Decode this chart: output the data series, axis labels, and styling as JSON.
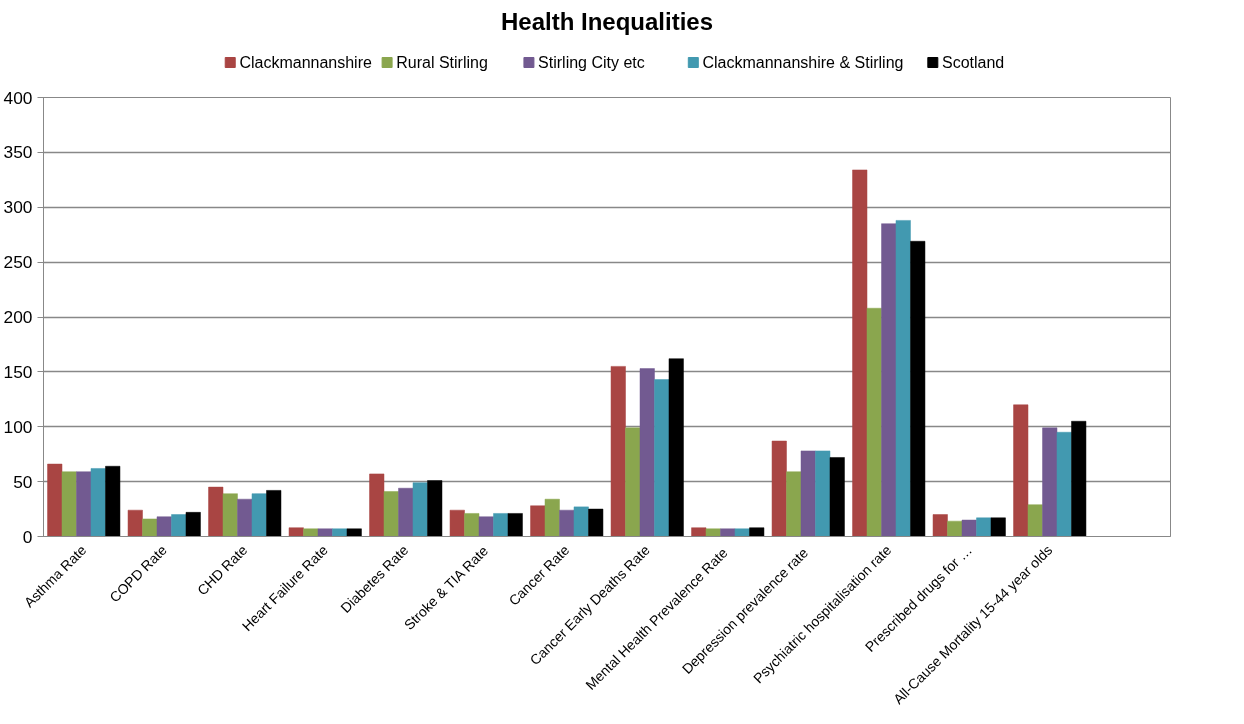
{
  "chart_data": {
    "type": "bar",
    "title": "Health Inequalities",
    "categories": [
      "Asthma Rate",
      "COPD Rate",
      "CHD Rate",
      "Heart Failure Rate",
      "Diabetes Rate",
      "Stroke & TIA Rate",
      "Cancer Rate",
      "Cancer Early Deaths Rate",
      "Mental Health  Prevalence Rate",
      "Depression  prevalence rate",
      "Psychiatric hospitalisation rate",
      "Prescribed drugs for …",
      "All-Cause Mortality 15-44 year olds",
      null
    ],
    "series": [
      {
        "name": "Clackmannanshire",
        "color": "#a94543",
        "values": [
          66,
          24,
          45,
          8,
          57,
          24,
          28,
          155,
          8,
          87,
          334,
          20,
          120,
          null
        ]
      },
      {
        "name": "Rural Stirling",
        "color": "#8aa64e",
        "values": [
          59,
          16,
          39,
          7,
          41,
          21,
          34,
          99,
          7,
          59,
          208,
          14,
          29,
          null
        ]
      },
      {
        "name": "Stirling City etc",
        "color": "#725a91",
        "values": [
          59,
          18,
          34,
          7,
          44,
          18,
          24,
          153,
          7,
          78,
          285,
          15,
          99,
          null
        ]
      },
      {
        "name": "Clackmannanshire & Stirling",
        "color": "#4299b0",
        "values": [
          62,
          20,
          39,
          7,
          49,
          21,
          27,
          143,
          7,
          78,
          288,
          17,
          95,
          null
        ]
      },
      {
        "name": "Scotland",
        "color": "#000000",
        "values": [
          64,
          22,
          42,
          7,
          51,
          21,
          25,
          162,
          8,
          72,
          269,
          17,
          105,
          null
        ]
      }
    ],
    "ylim": [
      0,
      400
    ],
    "yticks": [
      0,
      50,
      100,
      150,
      200,
      250,
      300,
      350,
      400
    ],
    "grid": "y",
    "legend": "top"
  }
}
